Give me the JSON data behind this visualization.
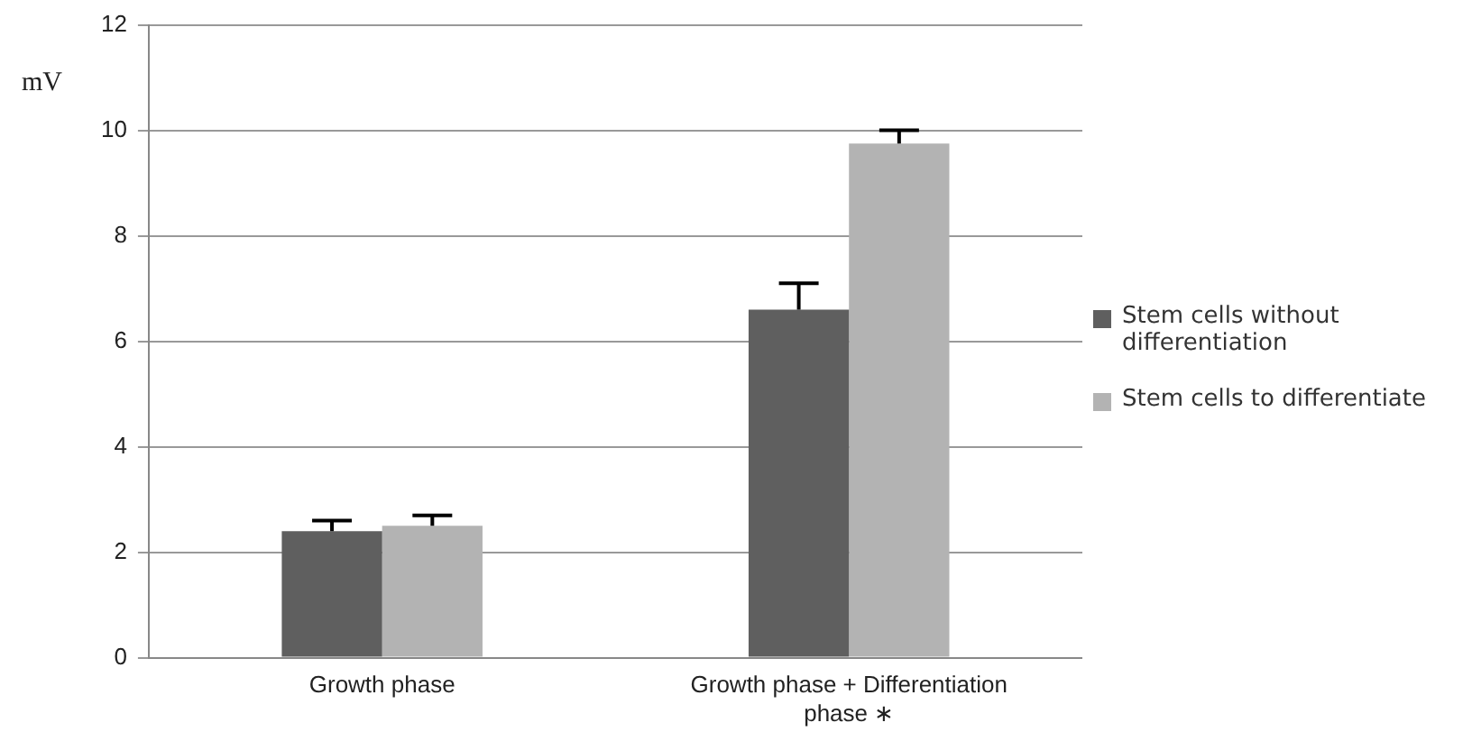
{
  "chart_data": {
    "type": "bar",
    "ylabel": "mV",
    "categories": [
      "Growth phase",
      "Growth phase + Differentiation phase ∗"
    ],
    "series": [
      {
        "name": "Stem cells without differentiation",
        "color": "#5f5f5f",
        "values": [
          2.4,
          6.6
        ],
        "errors": [
          [
            2.4,
            2.6
          ],
          [
            6.6,
            7.1
          ]
        ]
      },
      {
        "name": "Stem cells to differentiate",
        "color": "#b3b3b3",
        "values": [
          2.5,
          9.75
        ],
        "errors": [
          [
            2.5,
            2.7
          ],
          [
            9.75,
            10
          ]
        ]
      }
    ],
    "ylim": [
      0,
      12
    ],
    "yticks": [
      0,
      2,
      4,
      6,
      8,
      10,
      12
    ],
    "grid": "y",
    "legend": "right"
  }
}
